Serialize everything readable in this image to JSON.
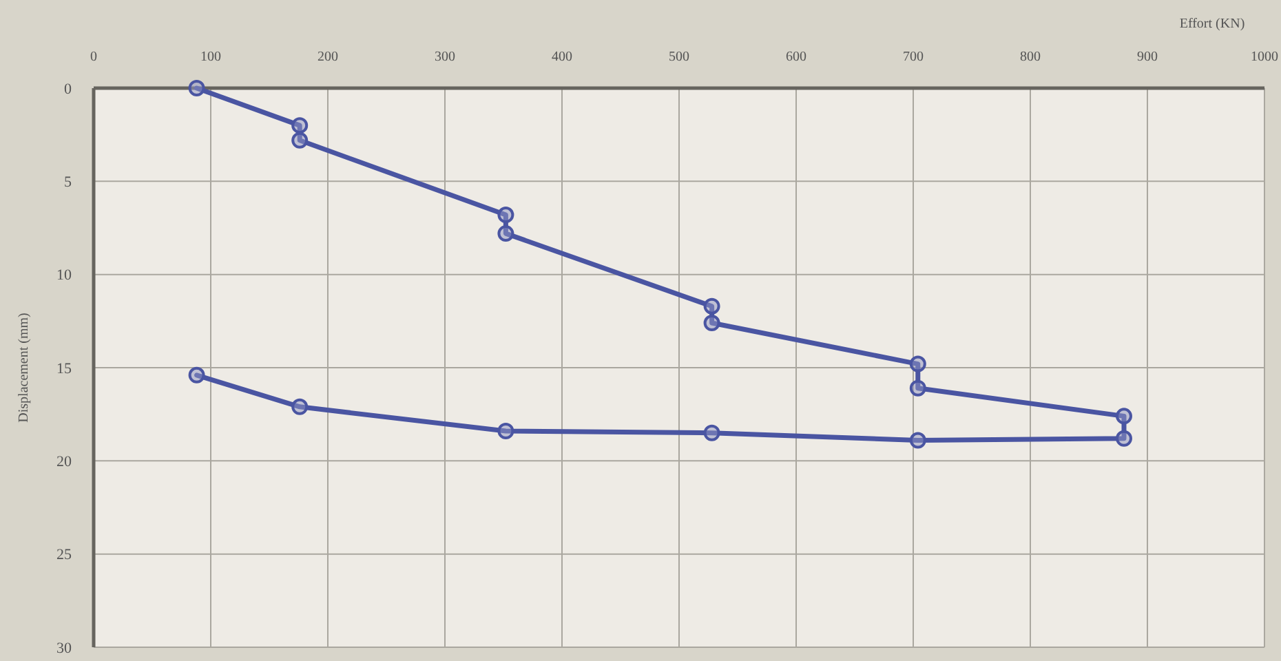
{
  "chart_data": {
    "type": "line",
    "xlabel": "Effort (KN)",
    "ylabel": "Displacement (mm)",
    "x": [
      88,
      176,
      176,
      352,
      352,
      528,
      528,
      704,
      704,
      880,
      880,
      704,
      528,
      352,
      176,
      88
    ],
    "series": [
      {
        "color": "#4a55a2",
        "values": [
          0,
          2,
          2.8,
          6.8,
          7.8,
          11.7,
          12.6,
          14.8,
          16.1,
          17.6,
          18.8,
          18.9,
          18.5,
          18.4,
          17.1,
          15.4
        ]
      }
    ],
    "xlim": [
      0,
      1000
    ],
    "xticks": [
      0,
      100,
      200,
      300,
      400,
      500,
      600,
      700,
      800,
      900,
      1000
    ],
    "ylim": [
      30,
      0
    ],
    "yticks": [
      0,
      5,
      10,
      15,
      20,
      25,
      30
    ],
    "grid": true,
    "marker": "circle",
    "line_style": "solid"
  }
}
